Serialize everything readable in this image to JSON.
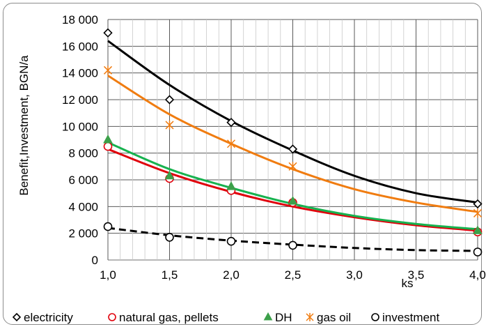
{
  "chart_data": {
    "type": "scatter",
    "title": "",
    "xlabel": "ks",
    "ylabel": "Benefit,Investment,  BGN/a",
    "xlim": [
      1.0,
      4.0
    ],
    "ylim": [
      0,
      18000
    ],
    "x_ticks": [
      "1,0",
      "1,5",
      "2,0",
      "2,5",
      "3,0",
      "3,5",
      "4,0"
    ],
    "y_ticks": [
      "0",
      "2 000",
      "4 000",
      "6 000",
      "8 000",
      "10 000",
      "12 000",
      "14 000",
      "16 000",
      "18 000"
    ],
    "grid": true,
    "legend_position": "bottom",
    "series": [
      {
        "name": "electricity",
        "marker": "diamond-open",
        "marker_color": "#000000",
        "trend_color": "#000000",
        "trend_dashed": false,
        "x": [
          1.0,
          1.5,
          2.0,
          2.5,
          4.0
        ],
        "y": [
          17000,
          12000,
          10300,
          8300,
          4200
        ],
        "trend": [
          [
            1.0,
            16400
          ],
          [
            1.5,
            13100
          ],
          [
            2.0,
            10400
          ],
          [
            2.5,
            8200
          ],
          [
            3.0,
            6300
          ],
          [
            3.5,
            5000
          ],
          [
            4.0,
            4300
          ]
        ]
      },
      {
        "name": "natural gas, pellets",
        "marker": "circle-open",
        "marker_color": "#e0000b",
        "trend_color": "#e0000b",
        "trend_dashed": false,
        "x": [
          1.0,
          1.5,
          2.0,
          2.5,
          4.0
        ],
        "y": [
          8500,
          6100,
          5200,
          4300,
          2100
        ],
        "trend": [
          [
            1.0,
            8300
          ],
          [
            1.5,
            6500
          ],
          [
            2.0,
            5100
          ],
          [
            2.5,
            4000
          ],
          [
            3.0,
            3200
          ],
          [
            3.5,
            2600
          ],
          [
            4.0,
            2200
          ]
        ]
      },
      {
        "name": "DH",
        "marker": "triangle-filled",
        "marker_color": "#3ca04a",
        "trend_color": "#17b24f",
        "trend_dashed": false,
        "x": [
          1.0,
          1.5,
          2.0,
          2.5,
          4.0
        ],
        "y": [
          9000,
          6300,
          5500,
          4400,
          2200
        ],
        "trend": [
          [
            1.0,
            8800
          ],
          [
            1.5,
            6800
          ],
          [
            2.0,
            5400
          ],
          [
            2.5,
            4200
          ],
          [
            3.0,
            3300
          ],
          [
            3.5,
            2700
          ],
          [
            4.0,
            2300
          ]
        ]
      },
      {
        "name": "gas oil",
        "marker": "asterisk",
        "marker_color": "#f07c10",
        "trend_color": "#f07c10",
        "trend_dashed": false,
        "x": [
          1.0,
          1.5,
          2.0,
          2.5,
          4.0
        ],
        "y": [
          14200,
          10100,
          8700,
          7000,
          3500
        ],
        "trend": [
          [
            1.0,
            13800
          ],
          [
            1.5,
            10900
          ],
          [
            2.0,
            8700
          ],
          [
            2.5,
            6800
          ],
          [
            3.0,
            5300
          ],
          [
            3.5,
            4300
          ],
          [
            4.0,
            3600
          ]
        ]
      },
      {
        "name": "investment",
        "marker": "circle-open",
        "marker_color": "#000000",
        "trend_color": "#000000",
        "trend_dashed": true,
        "x": [
          1.0,
          1.5,
          2.0,
          2.5,
          4.0
        ],
        "y": [
          2500,
          1700,
          1400,
          1100,
          600
        ],
        "trend": [
          [
            1.0,
            2400
          ],
          [
            1.5,
            1850
          ],
          [
            2.0,
            1450
          ],
          [
            2.5,
            1150
          ],
          [
            3.0,
            900
          ],
          [
            3.5,
            740
          ],
          [
            4.0,
            680
          ]
        ]
      }
    ]
  }
}
